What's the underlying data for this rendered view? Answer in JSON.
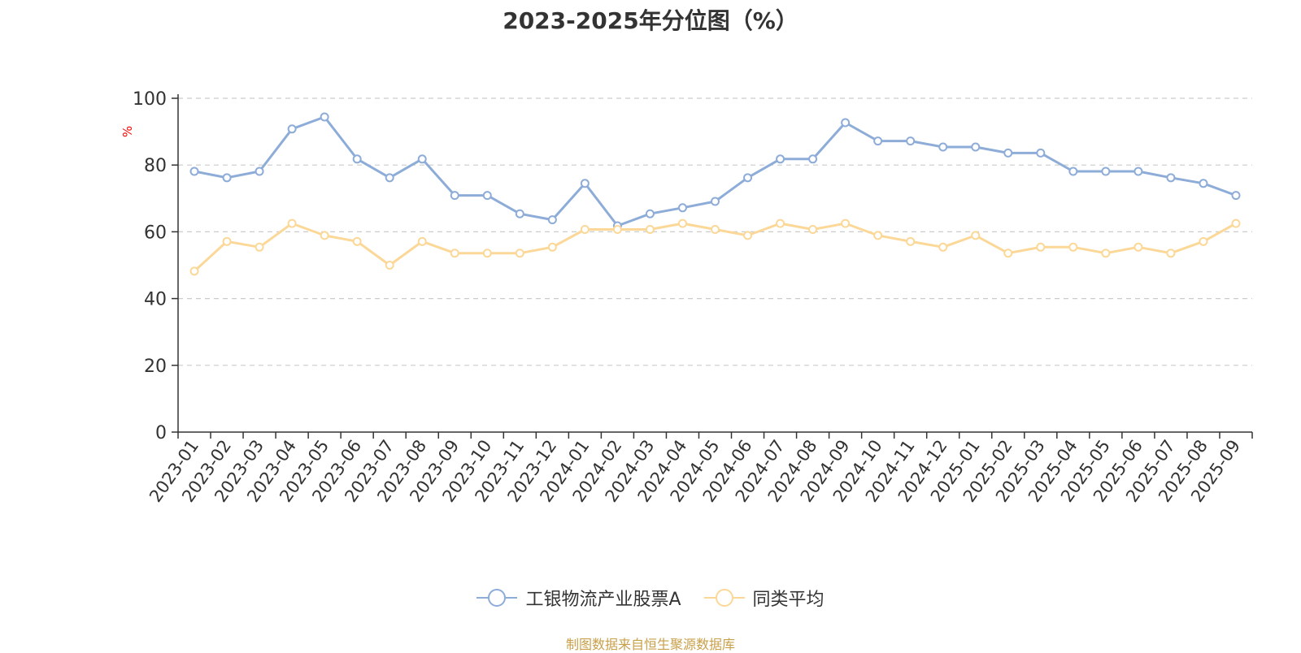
{
  "chart_data": {
    "type": "line",
    "title": "2023-2025年分位图（%）",
    "ylabel": "%",
    "xlabel": "",
    "ylim": [
      0,
      100
    ],
    "yticks": [
      0,
      20,
      40,
      60,
      80,
      100
    ],
    "grid": true,
    "legend_position": "bottom-center",
    "categories": [
      "2023-01",
      "2023-02",
      "2023-03",
      "2023-04",
      "2023-05",
      "2023-06",
      "2023-07",
      "2023-08",
      "2023-09",
      "2023-10",
      "2023-11",
      "2023-12",
      "2024-01",
      "2024-02",
      "2024-03",
      "2024-04",
      "2024-05",
      "2024-06",
      "2024-07",
      "2024-08",
      "2024-09",
      "2024-10",
      "2024-11",
      "2024-12",
      "2025-01",
      "2025-02",
      "2025-03",
      "2025-04",
      "2025-05",
      "2025-06",
      "2025-07",
      "2025-08",
      "2025-09"
    ],
    "series": [
      {
        "name": "工银物流产业股票A",
        "color": "#8eacd8",
        "values": [
          78.1,
          76.2,
          78.1,
          90.8,
          94.4,
          81.8,
          76.2,
          81.8,
          70.9,
          70.9,
          65.4,
          63.6,
          74.5,
          61.8,
          65.4,
          67.2,
          69.1,
          76.2,
          81.8,
          81.8,
          92.7,
          87.2,
          87.2,
          85.4,
          85.4,
          83.6,
          83.6,
          78.1,
          78.1,
          78.1,
          76.2,
          74.5,
          70.9
        ]
      },
      {
        "name": "同类平均",
        "color": "#fcd898",
        "values": [
          48.2,
          57.1,
          55.4,
          62.5,
          58.9,
          57.1,
          50.0,
          57.1,
          53.6,
          53.6,
          53.6,
          55.4,
          60.7,
          60.7,
          60.7,
          62.5,
          60.7,
          58.9,
          62.5,
          60.7,
          62.5,
          58.9,
          57.1,
          55.4,
          58.9,
          53.6,
          55.4,
          55.4,
          53.6,
          55.4,
          53.6,
          57.1,
          62.5
        ]
      }
    ]
  },
  "source_note": "制图数据来自恒生聚源数据库",
  "colors": {
    "axis_label_unit": "#ff0000",
    "grid": "#cccccc",
    "axis": "#333333",
    "source": "#c8a04a"
  }
}
